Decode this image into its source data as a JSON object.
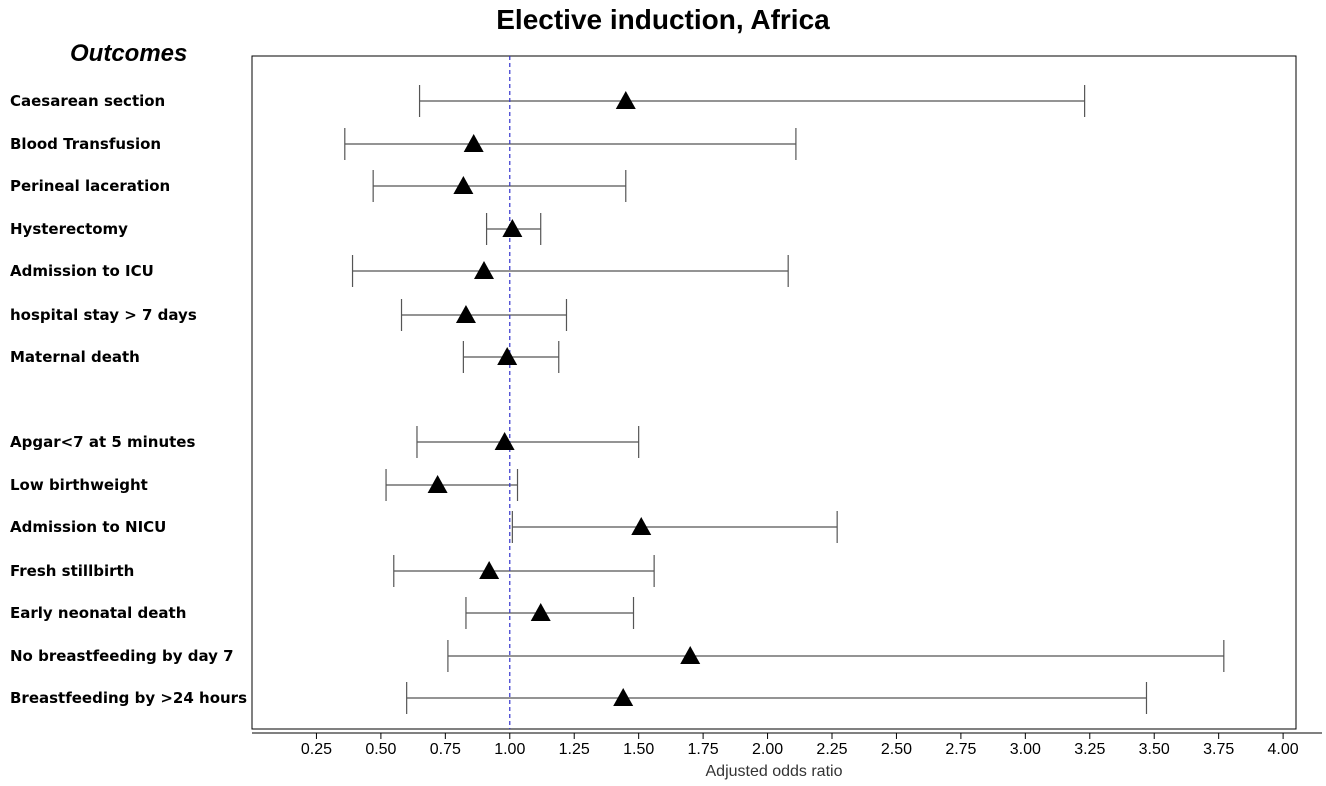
{
  "chart_data": {
    "type": "forest",
    "title": "Elective induction, Africa",
    "row_header": "Outcomes",
    "xlabel": "Adjusted odds ratio",
    "xlim": [
      0.0,
      4.05
    ],
    "xticks": [
      0.25,
      0.5,
      0.75,
      1.0,
      1.25,
      1.5,
      1.75,
      2.0,
      2.25,
      2.5,
      2.75,
      3.0,
      3.25,
      3.5,
      3.75,
      4.0
    ],
    "xtick_labels": [
      "0.25",
      "0.50",
      "0.75",
      "1.00",
      "1.25",
      "1.50",
      "1.75",
      "2.00",
      "2.25",
      "2.50",
      "2.75",
      "3.00",
      "3.25",
      "3.50",
      "3.75",
      "4.00"
    ],
    "reference_line": 1.0,
    "reference_line_color": "#3333cc",
    "marker": "triangle",
    "rows": [
      {
        "label": "Caesarean section",
        "estimate": 1.45,
        "lower": 0.65,
        "upper": 3.23
      },
      {
        "label": "Blood Transfusion",
        "estimate": 0.86,
        "lower": 0.36,
        "upper": 2.11
      },
      {
        "label": "Perineal laceration",
        "estimate": 0.82,
        "lower": 0.47,
        "upper": 1.45
      },
      {
        "label": "Hysterectomy",
        "estimate": 1.01,
        "lower": 0.91,
        "upper": 1.12
      },
      {
        "label": "Admission to ICU",
        "estimate": 0.9,
        "lower": 0.39,
        "upper": 2.08
      },
      {
        "label": "hospital stay > 7 days",
        "estimate": 0.83,
        "lower": 0.58,
        "upper": 1.22
      },
      {
        "label": "Maternal death",
        "estimate": 0.99,
        "lower": 0.82,
        "upper": 1.19
      },
      {
        "label": "Apgar<7 at 5 minutes",
        "estimate": 0.98,
        "lower": 0.64,
        "upper": 1.5
      },
      {
        "label": "Low birthweight",
        "estimate": 0.72,
        "lower": 0.52,
        "upper": 1.03
      },
      {
        "label": "Admission to NICU",
        "estimate": 1.51,
        "lower": 1.01,
        "upper": 2.27
      },
      {
        "label": "Fresh stillbirth",
        "estimate": 0.92,
        "lower": 0.55,
        "upper": 1.56
      },
      {
        "label": "Early neonatal death",
        "estimate": 1.12,
        "lower": 0.83,
        "upper": 1.48
      },
      {
        "label": "No breastfeeding by day 7",
        "estimate": 1.7,
        "lower": 0.76,
        "upper": 3.77
      },
      {
        "label": "Breastfeeding by >24 hours",
        "estimate": 1.44,
        "lower": 0.6,
        "upper": 3.47
      }
    ]
  }
}
